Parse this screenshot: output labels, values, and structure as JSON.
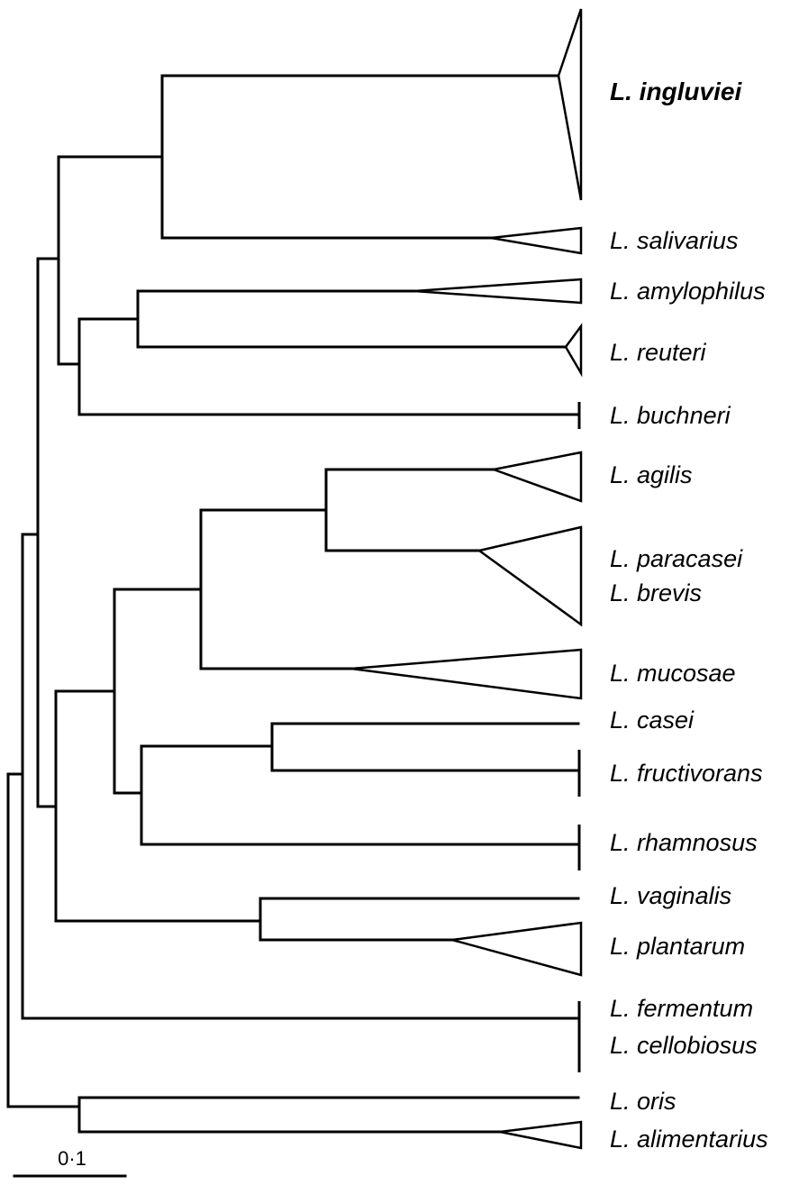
{
  "taxa": {
    "ingluviei": "L. ingluviei",
    "salivarius": "L. salivarius",
    "amylophilus": "L. amylophilus",
    "reuteri": "L. reuteri",
    "buchneri": "L. buchneri",
    "agilis": "L. agilis",
    "paracasei": "L. paracasei",
    "brevis": "L. brevis",
    "mucosae": "L. mucosae",
    "casei": "L. casei",
    "fructivorans": "L. fructivorans",
    "rhamnosus": "L. rhamnosus",
    "vaginalis": "L. vaginalis",
    "plantarum": "L. plantarum",
    "fermentum": "L. fermentum",
    "cellobiosus": "L. cellobiosus",
    "oris": "L. oris",
    "alimentarius": "L. alimentarius"
  },
  "scale_bar": {
    "label": "0·1",
    "value": 0.1
  }
}
